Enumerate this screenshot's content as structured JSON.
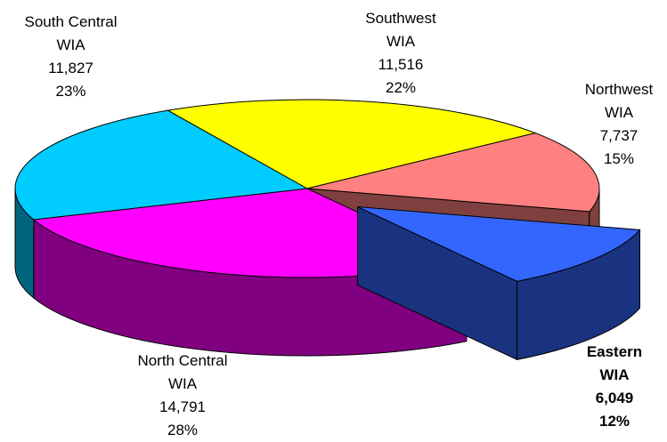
{
  "chart_data": {
    "type": "pie",
    "categories": [
      "Eastern WIA",
      "North Central WIA",
      "South Central WIA",
      "Southwest WIA",
      "Northwest WIA"
    ],
    "values": [
      6049,
      14791,
      11827,
      11516,
      7737
    ],
    "value_labels": [
      "6,049",
      "14,791",
      "11,827",
      "11,516",
      "7,737"
    ],
    "percents": [
      12,
      28,
      23,
      22,
      15
    ],
    "percent_labels": [
      "12%",
      "28%",
      "23%",
      "22%",
      "15%"
    ],
    "colors": [
      "#3366ff",
      "#ff00ff",
      "#00ccff",
      "#ffff00",
      "#ff8080"
    ],
    "exploded": "Eastern WIA"
  }
}
